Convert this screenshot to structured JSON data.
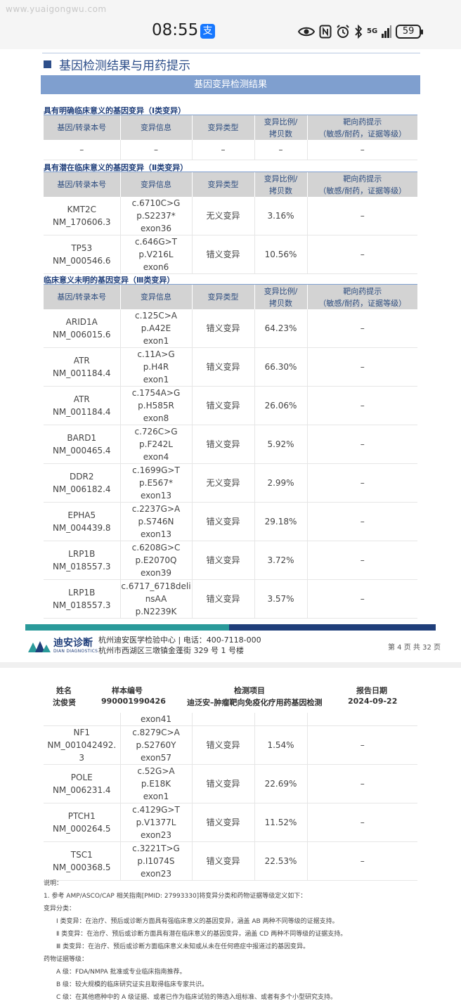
{
  "status_bar": {
    "watermark": "www.yuaigongwu.com",
    "time": "08:55",
    "app_badge": "支",
    "network": "5G",
    "battery": "59"
  },
  "report": {
    "section_title": "基因检测结果与用药提示",
    "banner": "基因变异检测结果",
    "headers": [
      "基因/转录本号",
      "变异信息",
      "变异类型",
      "变异比例/\n拷贝数",
      "靶向药提示\n（敏感/耐药，证据等级）"
    ],
    "category1": {
      "title": "具有明确临床意义的基因变异（Ⅰ类变异）",
      "rows": [
        {
          "gene": "–",
          "variant": "–",
          "type": "–",
          "ratio": "–",
          "drug": "–"
        }
      ]
    },
    "category2": {
      "title": "具有潜在临床意义的基因变异（Ⅱ类变异）",
      "rows": [
        {
          "gene": "KMT2C\nNM_170606.3",
          "variant": "c.6710C>G\np.S2237*\nexon36",
          "type": "无义变异",
          "ratio": "3.16%",
          "drug": "–"
        },
        {
          "gene": "TP53\nNM_000546.6",
          "variant": "c.646G>T\np.V216L\nexon6",
          "type": "错义变异",
          "ratio": "10.56%",
          "drug": "–"
        }
      ]
    },
    "category3": {
      "title": "临床意义未明的基因变异（Ⅲ类变异）",
      "rows": [
        {
          "gene": "ARID1A\nNM_006015.6",
          "variant": "c.125C>A\np.A42E\nexon1",
          "type": "错义变异",
          "ratio": "64.23%",
          "drug": "–"
        },
        {
          "gene": "ATR\nNM_001184.4",
          "variant": "c.11A>G\np.H4R\nexon1",
          "type": "错义变异",
          "ratio": "66.30%",
          "drug": "–"
        },
        {
          "gene": "ATR\nNM_001184.4",
          "variant": "c.1754A>G\np.H585R\nexon8",
          "type": "错义变异",
          "ratio": "26.06%",
          "drug": "–"
        },
        {
          "gene": "BARD1\nNM_000465.4",
          "variant": "c.726C>G\np.F242L\nexon4",
          "type": "错义变异",
          "ratio": "5.92%",
          "drug": "–"
        },
        {
          "gene": "DDR2\nNM_006182.4",
          "variant": "c.1699G>T\np.E567*\nexon13",
          "type": "无义变异",
          "ratio": "2.99%",
          "drug": "–"
        },
        {
          "gene": "EPHA5\nNM_004439.8",
          "variant": "c.2237G>A\np.S746N\nexon13",
          "type": "错义变异",
          "ratio": "29.18%",
          "drug": "–"
        },
        {
          "gene": "LRP1B\nNM_018557.3",
          "variant": "c.6208G>C\np.E2070Q\nexon39",
          "type": "错义变异",
          "ratio": "3.72%",
          "drug": "–"
        },
        {
          "gene": "LRP1B\nNM_018557.3",
          "variant": "c.6717_6718deli\nnsAA\np.N2239K",
          "type": "错义变异",
          "ratio": "3.57%",
          "drug": "–"
        }
      ]
    }
  },
  "footer": {
    "logo_cn": "迪安诊断",
    "logo_en": "DIAN DIAGNOSTICS",
    "line1": "杭州迪安医学检验中心 | 电话：400-7118-000",
    "line2": "杭州市西湖区三墩镇金蓬街 329 号 1 号楼",
    "page": "第 4 页 共 32 页"
  },
  "page2": {
    "header": {
      "name_label": "姓名",
      "name": "沈俊贤",
      "sample_label": "样本编号",
      "sample": "990001990426",
      "test_label": "检测项目",
      "test": "迪泛安–肿瘤靶向免疫化疗用药基因检测",
      "date_label": "报告日期",
      "date": "2024-09-22"
    },
    "continued": "exon41",
    "rows": [
      {
        "gene": "NF1\nNM_001042492.\n3",
        "variant": "c.8279C>A\np.S2760Y\nexon57",
        "type": "错义变异",
        "ratio": "1.54%",
        "drug": "–"
      },
      {
        "gene": "POLE\nNM_006231.4",
        "variant": "c.52G>A\np.E18K\nexon1",
        "type": "错义变异",
        "ratio": "22.69%",
        "drug": "–"
      },
      {
        "gene": "PTCH1\nNM_000264.5",
        "variant": "c.4129G>T\np.V1377L\nexon23",
        "type": "错义变异",
        "ratio": "11.52%",
        "drug": "–"
      },
      {
        "gene": "TSC1\nNM_000368.5",
        "variant": "c.3221T>G\np.I1074S\nexon23",
        "type": "错义变异",
        "ratio": "22.53%",
        "drug": "–"
      }
    ],
    "notes": [
      "说明：",
      "1. 参考 AMP/ASCO/CAP 相关指南[PMID: 27993330]将变异分类和药物证据等级定义如下：",
      "变异分类：",
      "Ⅰ 类变异：在治疗、预后或诊断方面具有强临床意义的基因变异，涵盖 AB 两种不同等级的证据支持。",
      "Ⅱ 类变异：在治疗、预后或诊断方面具有潜在临床意义的基因变异，涵盖 CD 两种不同等级的证据支持。",
      "Ⅲ 类变异：在治疗、预后或诊断方面临床意义未知或从未在任何癌症中报道过的基因变异。",
      "药物证据等级：",
      "A 级：FDA/NMPA 批准或专业临床指南推荐。",
      "B 级：较大规模的临床研究证实且取得临床专家共识。",
      "C 级：在其他癌种中的 A 级证据、或者已作为临床试验的筛选入组标准、或者有多个小型研究支持。"
    ]
  }
}
